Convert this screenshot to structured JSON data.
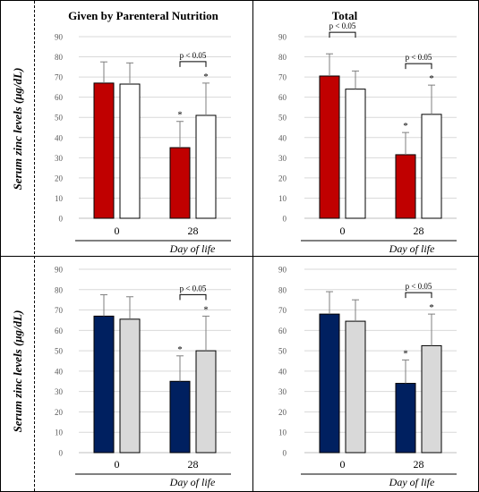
{
  "figure": {
    "ylabel": "Serum zinc levels (μg/dL)",
    "xlabel": "Day of life"
  },
  "colors": {
    "red": "#c00000",
    "navy": "#002060",
    "white": "#ffffff",
    "gray": "#d9d9d9",
    "outline": "#000000",
    "grid": "#d9d9d9",
    "tick_text": "#595959"
  },
  "chart_data": [
    {
      "type": "bar",
      "title": "Given by Parenteral Nutrition",
      "categories": [
        "0",
        "28"
      ],
      "ylim": [
        0,
        90
      ],
      "yticks": [
        0,
        10,
        20,
        30,
        40,
        50,
        60,
        70,
        80,
        90
      ],
      "grid": true,
      "series": [
        {
          "color": "#c00000",
          "values": [
            67,
            35
          ],
          "errors": [
            10.5,
            13
          ],
          "star": [
            false,
            true
          ]
        },
        {
          "color": "#ffffff",
          "values": [
            66.5,
            51
          ],
          "errors": [
            10.5,
            16
          ],
          "star": [
            false,
            true
          ]
        }
      ],
      "annotations": [
        {
          "category_index": 1,
          "text": "p < 0.05"
        }
      ]
    },
    {
      "type": "bar",
      "title": "Total",
      "categories": [
        "0",
        "28"
      ],
      "ylim": [
        0,
        90
      ],
      "yticks": [
        0,
        10,
        20,
        30,
        40,
        50,
        60,
        70,
        80,
        90
      ],
      "grid": true,
      "series": [
        {
          "color": "#c00000",
          "values": [
            70.5,
            31.5
          ],
          "errors": [
            11,
            11
          ],
          "star": [
            false,
            true
          ]
        },
        {
          "color": "#ffffff",
          "values": [
            64,
            51.5
          ],
          "errors": [
            9,
            14.5
          ],
          "star": [
            false,
            true
          ]
        }
      ],
      "annotations": [
        {
          "category_index": 0,
          "text": "p < 0.05"
        },
        {
          "category_index": 1,
          "text": "p < 0.05"
        }
      ]
    },
    {
      "type": "bar",
      "title": "",
      "categories": [
        "0",
        "28"
      ],
      "ylim": [
        0,
        90
      ],
      "yticks": [
        0,
        10,
        20,
        30,
        40,
        50,
        60,
        70,
        80,
        90
      ],
      "grid": true,
      "series": [
        {
          "color": "#002060",
          "values": [
            67,
            35
          ],
          "errors": [
            10.5,
            12.5
          ],
          "star": [
            false,
            true
          ]
        },
        {
          "color": "#d9d9d9",
          "values": [
            65.5,
            50
          ],
          "errors": [
            11,
            17
          ],
          "star": [
            false,
            true
          ]
        }
      ],
      "annotations": [
        {
          "category_index": 1,
          "text": "p < 0.05"
        }
      ]
    },
    {
      "type": "bar",
      "title": "",
      "categories": [
        "0",
        "28"
      ],
      "ylim": [
        0,
        90
      ],
      "yticks": [
        0,
        10,
        20,
        30,
        40,
        50,
        60,
        70,
        80,
        90
      ],
      "grid": true,
      "series": [
        {
          "color": "#002060",
          "values": [
            68,
            34
          ],
          "errors": [
            11,
            11.5
          ],
          "star": [
            false,
            true
          ]
        },
        {
          "color": "#d9d9d9",
          "values": [
            64.5,
            52.5
          ],
          "errors": [
            10.5,
            15.5
          ],
          "star": [
            false,
            true
          ]
        }
      ],
      "annotations": [
        {
          "category_index": 1,
          "text": "p < 0.05"
        }
      ]
    }
  ]
}
